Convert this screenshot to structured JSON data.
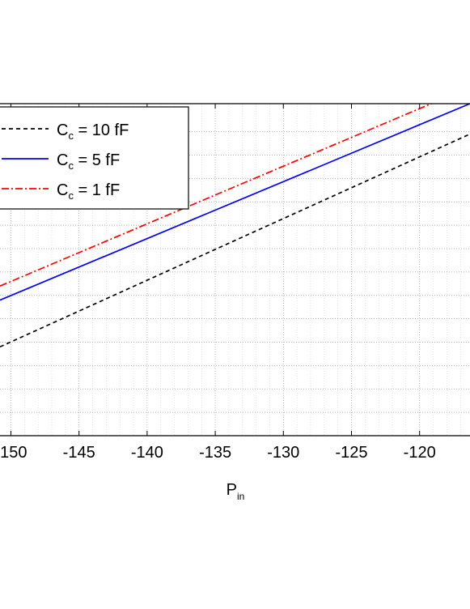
{
  "chart_data": {
    "type": "line",
    "title": "",
    "xlabel": "P",
    "xlabel_sub": "in",
    "ylabel": "",
    "xlim": [
      -150.8,
      -116.3
    ],
    "ylim": [
      0,
      14.2
    ],
    "x_ticks": [
      -150,
      -145,
      -140,
      -135,
      -130,
      -125,
      -120
    ],
    "x_tick_labels": [
      "-150",
      "-145",
      "-140",
      "-135",
      "-130",
      "-125",
      "-120"
    ],
    "y_minor_gridlines": [
      1,
      2,
      3,
      4,
      5,
      6,
      7,
      8,
      9,
      10,
      11,
      12,
      13
    ],
    "grid": true,
    "legend_placement": "top-left",
    "series": [
      {
        "name": "C_c = 10 fF",
        "legend_label": {
          "main": "C",
          "sub": "c",
          "rest": " = 10 fF"
        },
        "color": "#000000",
        "dash": "5,4",
        "x": [
          -150.8,
          -116.3
        ],
        "y": [
          3.8,
          12.9
        ]
      },
      {
        "name": "C_c = 5 fF",
        "legend_label": {
          "main": "C",
          "sub": "c",
          "rest": " = 5 fF"
        },
        "color": "#0000ff",
        "dash": "",
        "x": [
          -150.8,
          -116.3
        ],
        "y": [
          5.8,
          14.2
        ]
      },
      {
        "name": "C_c = 1 fF",
        "legend_label": {
          "main": "C",
          "sub": "c",
          "rest": " = 1 fF"
        },
        "color": "#ff0000",
        "dash": "9,3,2,3",
        "x": [
          -150.8,
          -116.3
        ],
        "y": [
          6.4,
          14.9
        ]
      }
    ]
  }
}
